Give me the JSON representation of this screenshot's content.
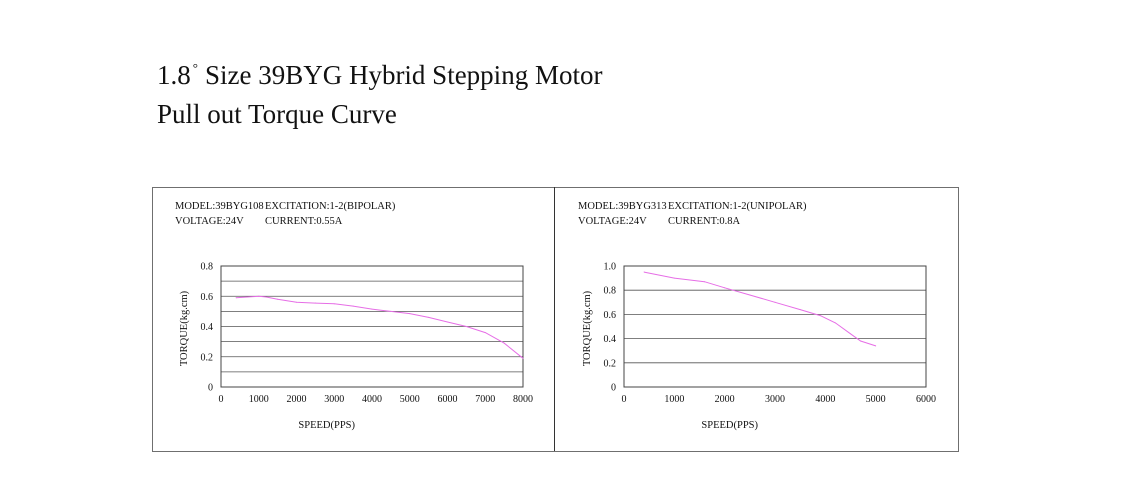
{
  "title": {
    "line1_prefix": "1.8",
    "degree_symbol": "°",
    "line1_suffix": "Size 39BYG Hybrid Stepping Motor",
    "line2": "Pull out Torque Curve"
  },
  "chart_data": [
    {
      "type": "line",
      "model": "MODEL:39BYG108",
      "excitation": "EXCITATION:1-2(BIPOLAR)",
      "voltage": "VOLTAGE:24V",
      "current": "CURRENT:0.55A",
      "xlabel": "SPEED(PPS)",
      "ylabel": "TORQUE(kg.cm)",
      "xlim": [
        0,
        8000
      ],
      "ylim": [
        0,
        0.8
      ],
      "xticks": [
        0,
        1000,
        2000,
        3000,
        4000,
        5000,
        6000,
        7000,
        8000
      ],
      "xtick_labels": [
        "0",
        "1000",
        "2000",
        "3000",
        "4000",
        "5000",
        "6000",
        "7000",
        "8000"
      ],
      "yticks": [
        0,
        0.2,
        0.4,
        0.6,
        0.8
      ],
      "ytick_labels": [
        "0",
        "0.2",
        "0.4",
        "0.6",
        "0.8"
      ],
      "ygrid": [
        0.1,
        0.2,
        0.3,
        0.4,
        0.5,
        0.6,
        0.7
      ],
      "line_color": "#e66ee6",
      "series": [
        {
          "x": [
            400,
            1000,
            1200,
            1500,
            2000,
            2500,
            3000,
            3500,
            4000,
            4500,
            5000,
            5500,
            6000,
            6500,
            7000,
            7500,
            8000
          ],
          "values": [
            0.59,
            0.6,
            0.595,
            0.58,
            0.56,
            0.555,
            0.55,
            0.535,
            0.515,
            0.5,
            0.485,
            0.46,
            0.43,
            0.4,
            0.36,
            0.29,
            0.19
          ]
        }
      ]
    },
    {
      "type": "line",
      "model": "MODEL:39BYG313",
      "excitation": "EXCITATION:1-2(UNIPOLAR)",
      "voltage": "VOLTAGE:24V",
      "current": "CURRENT:0.8A",
      "xlabel": "SPEED(PPS)",
      "ylabel": "TORQUE(kg.cm)",
      "xlim": [
        0,
        6000
      ],
      "ylim": [
        0,
        1.0
      ],
      "xticks": [
        0,
        1000,
        2000,
        3000,
        4000,
        5000,
        6000
      ],
      "xtick_labels": [
        "0",
        "1000",
        "2000",
        "3000",
        "4000",
        "5000",
        "6000"
      ],
      "yticks": [
        0,
        0.2,
        0.4,
        0.6,
        0.8,
        1.0
      ],
      "ytick_labels": [
        "0",
        "0.2",
        "0.4",
        "0.6",
        "0.8",
        "1.0"
      ],
      "ygrid": [
        0.2,
        0.4,
        0.6,
        0.8
      ],
      "line_color": "#e66ee6",
      "series": [
        {
          "x": [
            400,
            1000,
            1600,
            2000,
            2500,
            3000,
            3500,
            3900,
            4200,
            4500,
            4700,
            5000
          ],
          "values": [
            0.95,
            0.9,
            0.87,
            0.82,
            0.76,
            0.7,
            0.64,
            0.59,
            0.53,
            0.44,
            0.38,
            0.34
          ]
        }
      ]
    }
  ]
}
